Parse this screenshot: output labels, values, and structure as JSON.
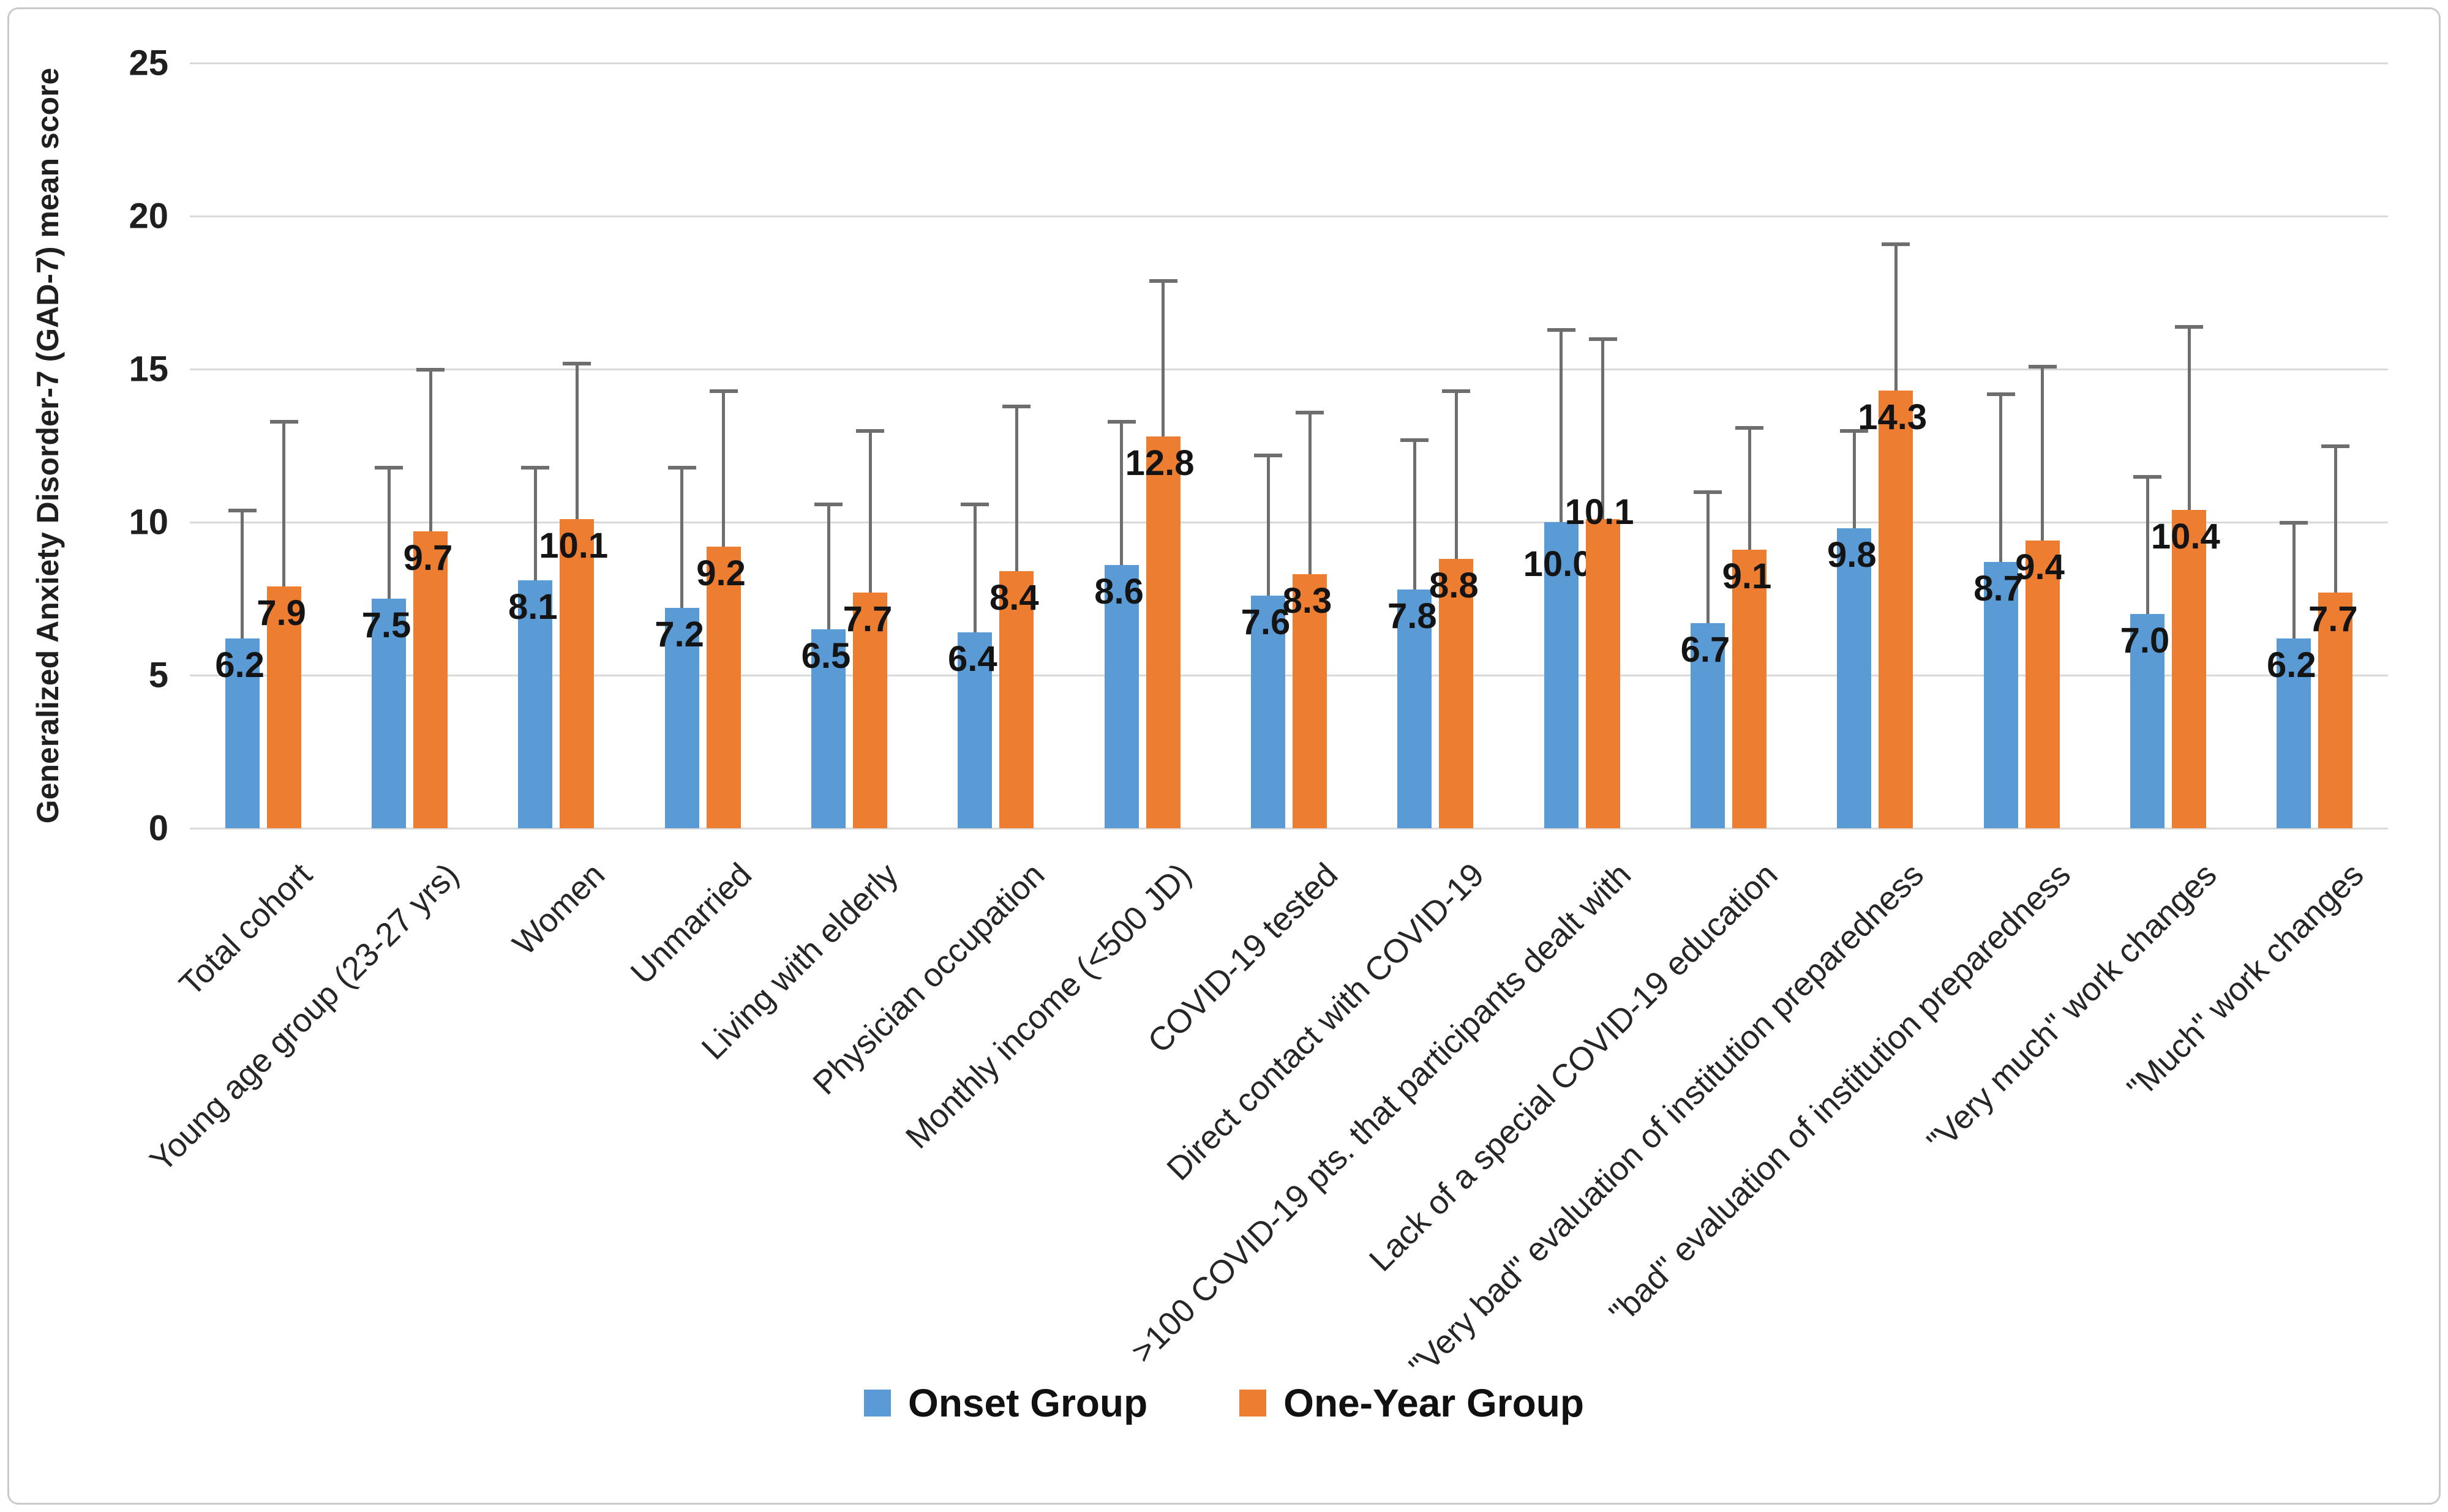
{
  "figure": {
    "background": "#ffffff",
    "border_color": "#c9c9c9"
  },
  "chart_data": {
    "type": "bar",
    "title": "",
    "xlabel": "",
    "ylabel": "Generalized Anxiety Disorder-7 (GAD-7) mean score",
    "ylim": [
      0,
      25
    ],
    "yticks": [
      0,
      5,
      10,
      15,
      20,
      25
    ],
    "grid": true,
    "legend_position": "bottom-center",
    "gridline_color": "#d9d9d9",
    "error_bar_color": "#6e6e6e",
    "data_label_color": "#141414",
    "categories": [
      "Total cohort",
      "Young age group (23-27 yrs)",
      "Women",
      "Unmarried",
      "Living with elderly",
      "Physician occupation",
      "Monthly income (<500 JD)",
      "COVID-19 tested",
      "Direct contact with COVID-19",
      ">100 COVID-19 pts. that participants dealt with",
      "Lack of a special COVID-19 education",
      "\"Very bad\" evaluation of institution preparedness",
      "\"bad\" evaluation of institution preparedness",
      "\"Very much\" work changes",
      "\"Much\" work changes"
    ],
    "series": [
      {
        "name": "Onset Group",
        "color": "#5b9bd5",
        "values": [
          6.2,
          7.5,
          8.1,
          7.2,
          6.5,
          6.4,
          8.6,
          7.6,
          7.8,
          10.0,
          6.7,
          9.8,
          8.7,
          7.0,
          6.2
        ],
        "error_tops": [
          10.4,
          11.8,
          11.8,
          11.8,
          10.6,
          10.6,
          13.3,
          12.2,
          12.7,
          16.3,
          11.0,
          13.0,
          14.2,
          11.5,
          10.0
        ],
        "label_dy": [
          0,
          0,
          0,
          0,
          0,
          0,
          0,
          0,
          0,
          25,
          0,
          0,
          0,
          0,
          0
        ]
      },
      {
        "name": "One-Year Group",
        "color": "#ed7d31",
        "values": [
          7.9,
          9.7,
          10.1,
          9.2,
          7.7,
          8.4,
          12.8,
          8.3,
          8.8,
          10.1,
          9.1,
          14.3,
          9.4,
          10.4,
          7.7
        ],
        "error_tops": [
          13.3,
          15.0,
          15.2,
          14.3,
          13.0,
          13.8,
          17.9,
          13.6,
          14.3,
          16.0,
          13.1,
          19.1,
          15.1,
          16.4,
          12.5
        ],
        "label_dy": [
          0,
          0,
          0,
          0,
          0,
          0,
          0,
          0,
          0,
          -55,
          0,
          0,
          0,
          0,
          0
        ]
      }
    ]
  }
}
